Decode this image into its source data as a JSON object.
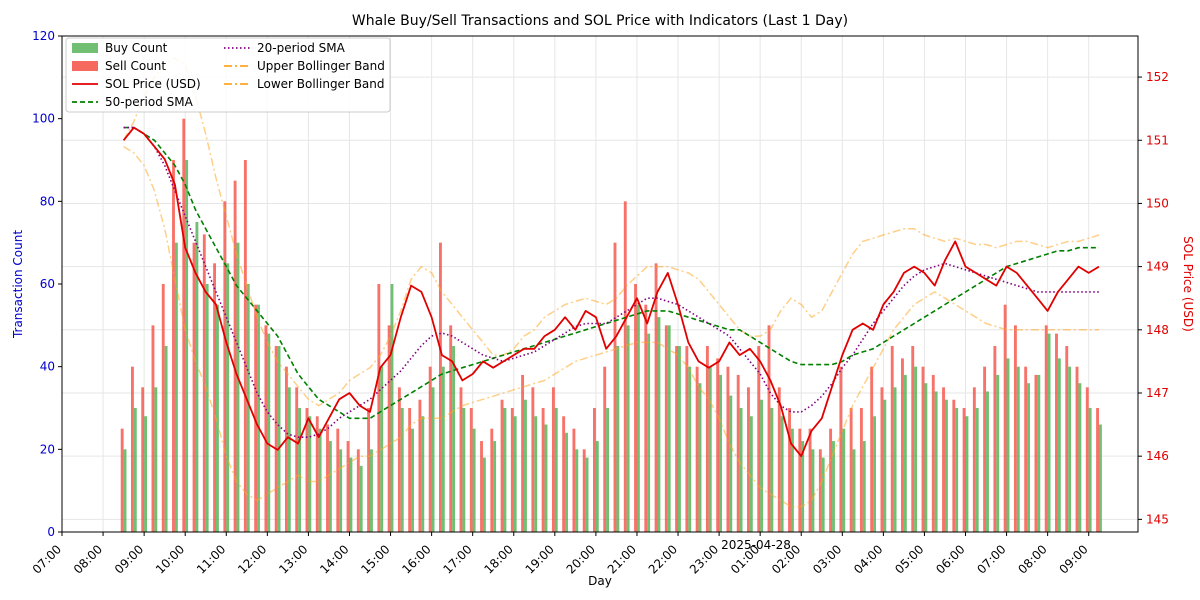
{
  "chart_data": {
    "type": "bar+line",
    "title": "Whale Buy/Sell Transactions and SOL Price with Indicators (Last 1 Day)",
    "xlabel": "Day",
    "ylabel_left": "Transaction Count",
    "ylabel_right": "SOL Price (USD)",
    "ylim_left": [
      0,
      120
    ],
    "ylim_right": [
      144.8,
      152.65
    ],
    "yticks_left": [
      0,
      20,
      40,
      60,
      80,
      100,
      120
    ],
    "yticks_right": [
      145,
      146,
      147,
      148,
      149,
      150,
      151,
      152
    ],
    "x_tick_labels": [
      "07:00",
      "08:00",
      "09:00",
      "10:00",
      "11:00",
      "12:00",
      "13:00",
      "14:00",
      "15:00",
      "16:00",
      "17:00",
      "18:00",
      "19:00",
      "20:00",
      "21:00",
      "22:00",
      "23:00",
      "01:00",
      "02:00",
      "03:00",
      "04:00",
      "05:00",
      "06:00",
      "07:00",
      "08:00",
      "09:00"
    ],
    "date_label": "2025-04-28",
    "grid": true,
    "legend_position": "top-left",
    "legend": [
      {
        "label": "Buy Count",
        "color": "#4caf50",
        "kind": "patch"
      },
      {
        "label": "Sell Count",
        "color": "#f44336",
        "kind": "patch"
      },
      {
        "label": "SOL Price (USD)",
        "color": "#e00000",
        "kind": "solid"
      },
      {
        "label": "50-period SMA",
        "color": "#008000",
        "kind": "dashed"
      },
      {
        "label": "20-period SMA",
        "color": "#800080",
        "kind": "dotted"
      },
      {
        "label": "Upper Bollinger Band",
        "color": "#ffa726",
        "kind": "dashdot"
      },
      {
        "label": "Lower Bollinger Band",
        "color": "#ffa726",
        "kind": "dashdot"
      }
    ],
    "x_hours": [
      8.5,
      8.75,
      9.0,
      9.25,
      9.5,
      9.75,
      10.0,
      10.25,
      10.5,
      10.75,
      11.0,
      11.25,
      11.5,
      11.75,
      12.0,
      12.25,
      12.5,
      12.75,
      13.0,
      13.25,
      13.5,
      13.75,
      14.0,
      14.25,
      14.5,
      14.75,
      15.0,
      15.25,
      15.5,
      15.75,
      16.0,
      16.25,
      16.5,
      16.75,
      17.0,
      17.25,
      17.5,
      17.75,
      18.0,
      18.25,
      18.5,
      18.75,
      19.0,
      19.25,
      19.5,
      19.75,
      20.0,
      20.25,
      20.5,
      20.75,
      21.0,
      21.25,
      21.5,
      21.75,
      22.0,
      22.25,
      22.5,
      22.75,
      23.0,
      23.25,
      23.5,
      23.75,
      24.0,
      24.25,
      24.5,
      24.75,
      25.0,
      25.25,
      25.5,
      25.75,
      26.0,
      26.25,
      26.5,
      26.75,
      27.0,
      27.25,
      27.5,
      27.75,
      28.0,
      28.25,
      28.5,
      28.75,
      29.0,
      29.25,
      29.5,
      29.75,
      30.0,
      30.25,
      30.5,
      30.75,
      31.0,
      31.25,
      31.5,
      31.75,
      32.0,
      32.25
    ],
    "series": [
      {
        "name": "Buy Count",
        "values": [
          20,
          30,
          28,
          35,
          45,
          70,
          90,
          75,
          60,
          55,
          65,
          70,
          60,
          55,
          48,
          45,
          35,
          30,
          28,
          25,
          22,
          20,
          18,
          16,
          20,
          40,
          60,
          30,
          25,
          28,
          35,
          40,
          45,
          30,
          25,
          18,
          22,
          30,
          28,
          32,
          28,
          26,
          30,
          24,
          20,
          18,
          22,
          30,
          45,
          50,
          55,
          48,
          52,
          50,
          45,
          40,
          36,
          40,
          38,
          33,
          30,
          28,
          32,
          30,
          28,
          25,
          22,
          20,
          18,
          22,
          25,
          20,
          22,
          28,
          32,
          35,
          38,
          40,
          36,
          34,
          32,
          30,
          28,
          30,
          34,
          38,
          42,
          40,
          36,
          38,
          48,
          42,
          40,
          36,
          30,
          26
        ]
      },
      {
        "name": "Sell Count",
        "values": [
          25,
          40,
          35,
          50,
          60,
          90,
          100,
          70,
          72,
          65,
          80,
          85,
          90,
          55,
          50,
          45,
          40,
          35,
          30,
          28,
          26,
          25,
          22,
          20,
          30,
          60,
          50,
          35,
          30,
          32,
          40,
          70,
          50,
          35,
          30,
          22,
          25,
          32,
          30,
          38,
          35,
          30,
          35,
          28,
          25,
          20,
          30,
          40,
          70,
          80,
          60,
          55,
          65,
          50,
          45,
          45,
          40,
          45,
          42,
          40,
          38,
          35,
          45,
          50,
          35,
          30,
          25,
          25,
          20,
          25,
          40,
          30,
          30,
          40,
          35,
          45,
          42,
          45,
          40,
          38,
          35,
          32,
          30,
          35,
          40,
          45,
          55,
          50,
          40,
          38,
          50,
          48,
          45,
          40,
          35,
          30
        ]
      },
      {
        "name": "SOL Price (USD)",
        "values": [
          151.0,
          151.2,
          151.1,
          150.9,
          150.7,
          150.3,
          149.3,
          148.9,
          148.6,
          148.4,
          147.8,
          147.3,
          146.9,
          146.5,
          146.2,
          146.1,
          146.3,
          146.2,
          146.6,
          146.3,
          146.6,
          146.9,
          147.0,
          146.8,
          146.7,
          147.4,
          147.6,
          148.2,
          148.7,
          148.6,
          148.2,
          147.6,
          147.5,
          147.2,
          147.3,
          147.5,
          147.4,
          147.5,
          147.6,
          147.7,
          147.7,
          147.9,
          148.0,
          148.2,
          148.0,
          148.3,
          148.2,
          147.7,
          147.9,
          148.2,
          148.5,
          148.1,
          148.6,
          148.9,
          148.4,
          147.8,
          147.5,
          147.4,
          147.5,
          147.8,
          147.6,
          147.7,
          147.5,
          147.2,
          146.8,
          146.2,
          146.0,
          146.4,
          146.6,
          147.1,
          147.6,
          148.0,
          148.1,
          148.0,
          148.4,
          148.6,
          148.9,
          149.0,
          148.9,
          148.7,
          149.1,
          149.4,
          149.0,
          148.9,
          148.8,
          148.7,
          149.0,
          148.9,
          148.7,
          148.5,
          148.3,
          148.6,
          148.8,
          149.0,
          148.9,
          149.0
        ]
      },
      {
        "name": "50-period SMA",
        "values": [
          151.2,
          151.2,
          151.1,
          151.0,
          150.8,
          150.6,
          150.3,
          149.9,
          149.6,
          149.3,
          149.0,
          148.7,
          148.5,
          148.3,
          148.1,
          147.9,
          147.6,
          147.3,
          147.1,
          146.9,
          146.8,
          146.7,
          146.6,
          146.6,
          146.6,
          146.7,
          146.8,
          146.9,
          147.0,
          147.1,
          147.2,
          147.3,
          147.35,
          147.4,
          147.45,
          147.5,
          147.55,
          147.6,
          147.65,
          147.7,
          147.75,
          147.8,
          147.85,
          147.9,
          147.95,
          148.0,
          148.05,
          148.1,
          148.15,
          148.2,
          148.25,
          148.3,
          148.3,
          148.3,
          148.25,
          148.2,
          148.15,
          148.1,
          148.05,
          148.0,
          148.0,
          147.9,
          147.8,
          147.7,
          147.6,
          147.5,
          147.45,
          147.45,
          147.45,
          147.45,
          147.5,
          147.6,
          147.65,
          147.7,
          147.8,
          147.9,
          148.0,
          148.1,
          148.2,
          148.3,
          148.4,
          148.5,
          148.6,
          148.7,
          148.8,
          148.9,
          149.0,
          149.05,
          149.1,
          149.15,
          149.2,
          149.25,
          149.25,
          149.3,
          149.3,
          149.3
        ]
      },
      {
        "name": "20-period SMA",
        "values": [
          151.2,
          151.2,
          151.1,
          150.9,
          150.6,
          150.2,
          149.8,
          149.4,
          149.0,
          148.6,
          148.2,
          147.8,
          147.4,
          147.0,
          146.7,
          146.5,
          146.35,
          146.3,
          146.3,
          146.35,
          146.45,
          146.6,
          146.7,
          146.8,
          146.9,
          147.05,
          147.2,
          147.35,
          147.55,
          147.75,
          147.9,
          147.95,
          147.9,
          147.8,
          147.7,
          147.6,
          147.55,
          147.5,
          147.55,
          147.6,
          147.65,
          147.75,
          147.85,
          147.95,
          148.05,
          148.1,
          148.1,
          148.1,
          148.2,
          148.3,
          148.4,
          148.5,
          148.5,
          148.45,
          148.4,
          148.3,
          148.2,
          148.1,
          148.0,
          147.9,
          147.7,
          147.5,
          147.3,
          147.0,
          146.8,
          146.7,
          146.7,
          146.8,
          146.95,
          147.15,
          147.4,
          147.6,
          147.85,
          148.1,
          148.3,
          148.5,
          148.7,
          148.85,
          148.95,
          149.0,
          149.05,
          149.0,
          148.95,
          148.9,
          148.85,
          148.8,
          148.75,
          148.7,
          148.65,
          148.6,
          148.6,
          148.6,
          148.6,
          148.6,
          148.6,
          148.6
        ]
      },
      {
        "name": "Upper Bollinger Band",
        "values": [
          151.0,
          151.3,
          151.7,
          152.0,
          152.2,
          152.3,
          152.2,
          151.7,
          151.1,
          150.4,
          149.8,
          149.2,
          148.7,
          148.2,
          147.8,
          147.5,
          147.3,
          147.1,
          146.9,
          146.8,
          146.9,
          147.0,
          147.2,
          147.3,
          147.4,
          147.6,
          147.9,
          148.3,
          148.8,
          149.0,
          148.9,
          148.6,
          148.4,
          148.2,
          148.0,
          147.8,
          147.6,
          147.6,
          147.7,
          147.9,
          148.0,
          148.2,
          148.3,
          148.4,
          148.45,
          148.5,
          148.45,
          148.4,
          148.5,
          148.7,
          148.85,
          149.0,
          149.0,
          149.0,
          148.95,
          148.9,
          148.8,
          148.6,
          148.4,
          148.2,
          148.0,
          147.9,
          147.9,
          148.0,
          148.3,
          148.5,
          148.4,
          148.2,
          148.3,
          148.6,
          148.9,
          149.2,
          149.4,
          149.45,
          149.5,
          149.55,
          149.6,
          149.6,
          149.5,
          149.45,
          149.4,
          149.45,
          149.4,
          149.35,
          149.35,
          149.3,
          149.35,
          149.4,
          149.4,
          149.35,
          149.3,
          149.35,
          149.4,
          149.4,
          149.45,
          149.5
        ]
      },
      {
        "name": "Lower Bollinger Band",
        "values": [
          150.9,
          150.8,
          150.6,
          150.2,
          149.6,
          148.8,
          148.0,
          147.5,
          147.1,
          146.6,
          146.0,
          145.6,
          145.4,
          145.3,
          145.4,
          145.5,
          145.6,
          145.7,
          145.6,
          145.6,
          145.7,
          145.8,
          145.9,
          146.0,
          146.0,
          146.1,
          146.2,
          146.3,
          146.5,
          146.6,
          146.6,
          146.6,
          146.7,
          146.8,
          146.85,
          146.9,
          146.95,
          147.0,
          147.05,
          147.1,
          147.15,
          147.2,
          147.3,
          147.4,
          147.5,
          147.55,
          147.6,
          147.65,
          147.7,
          147.75,
          147.8,
          147.8,
          147.8,
          147.7,
          147.6,
          147.4,
          147.1,
          146.9,
          146.6,
          146.2,
          145.9,
          145.7,
          145.5,
          145.4,
          145.3,
          145.2,
          145.2,
          145.3,
          145.6,
          146.0,
          146.4,
          146.8,
          147.1,
          147.4,
          147.7,
          148.0,
          148.2,
          148.4,
          148.5,
          148.6,
          148.5,
          148.4,
          148.3,
          148.2,
          148.1,
          148.05,
          148.0,
          148.0,
          148.0,
          148.0,
          148.0,
          148.0,
          148.0,
          148.0,
          148.0,
          148.0
        ]
      }
    ]
  }
}
